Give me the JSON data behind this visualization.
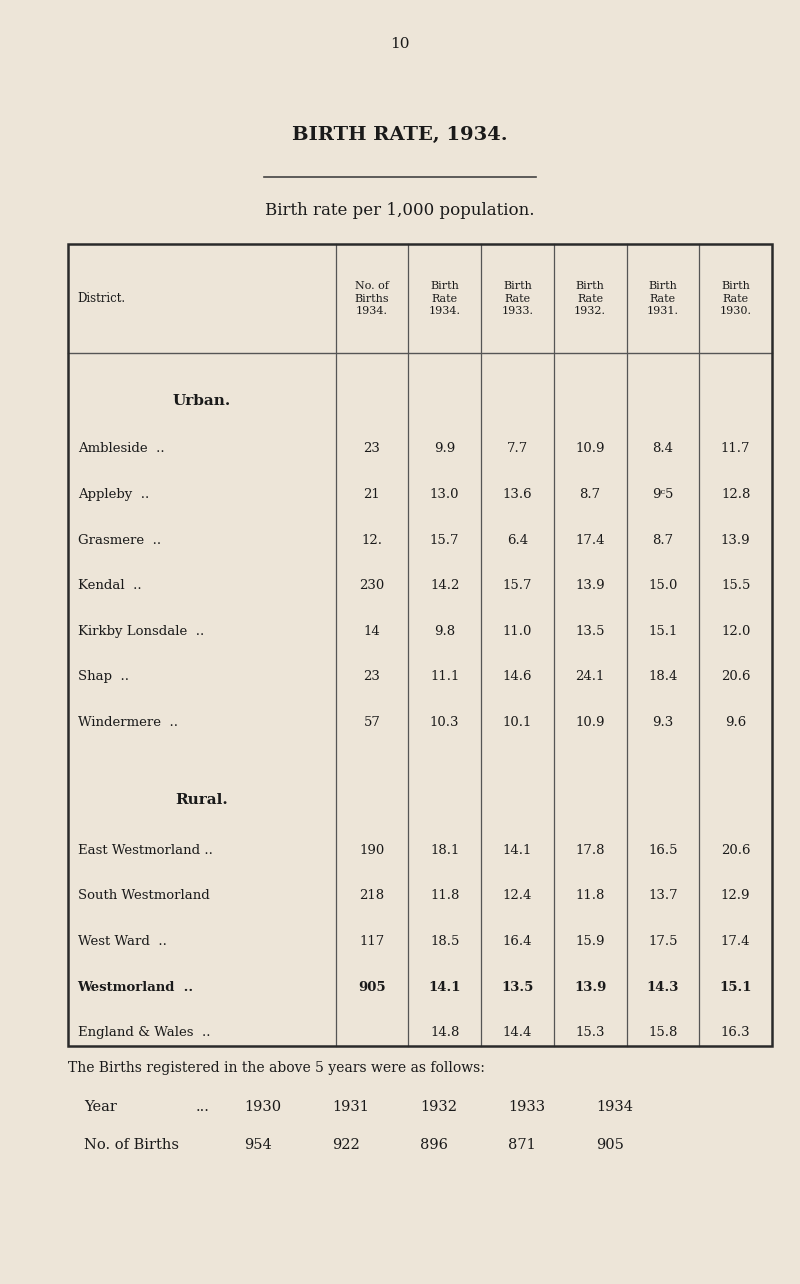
{
  "page_number": "10",
  "title": "BIRTH RATE, 1934.",
  "subtitle": "Birth rate per 1,000 population.",
  "background_color": "#ede5d8",
  "text_color": "#1a1a1a",
  "col_headers": [
    "District.",
    "No. of\nBirths\n1934.",
    "Birth\nRate\n1934.",
    "Birth\nRate\n1933.",
    "Birth\nRate\n1932.",
    "Birth\nRate\n1931.",
    "Birth\nRate\n1930."
  ],
  "urban_label": "Urban.",
  "urban_rows": [
    [
      "Ambleside  ..",
      "23",
      "9.9",
      "7.7",
      "10.9",
      "8.4",
      "11.7"
    ],
    [
      "Appleby  ..",
      "21",
      "13.0",
      "13.6",
      "8.7",
      "9ᶜ5",
      "12.8"
    ],
    [
      "Grasmere  ..",
      "12.",
      "15.7",
      "6.4",
      "17.4",
      "8.7",
      "13.9"
    ],
    [
      "Kendal  ..",
      "230",
      "14.2",
      "15.7",
      "13.9",
      "15.0",
      "15.5"
    ],
    [
      "Kirkby Lonsdale  ..",
      "14",
      "9.8",
      "11.0",
      "13.5",
      "15.1",
      "12.0"
    ],
    [
      "Shap  ..",
      "23",
      "11.1",
      "14.6",
      "24.1",
      "18.4",
      "20.6"
    ],
    [
      "Windermere  ..",
      "57",
      "10.3",
      "10.1",
      "10.9",
      "9.3",
      "9.6"
    ]
  ],
  "rural_label": "Rural.",
  "rural_rows": [
    [
      "East Westmorland ..",
      "190",
      "18.1",
      "14.1",
      "17.8",
      "16.5",
      "20.6",
      false
    ],
    [
      "South Westmorland",
      "218",
      "11.8",
      "12.4",
      "11.8",
      "13.7",
      "12.9",
      false
    ],
    [
      "West Ward  ..",
      "117",
      "18.5",
      "16.4",
      "15.9",
      "17.5",
      "17.4",
      false
    ],
    [
      "Westmorland  ..",
      "905",
      "14.1",
      "13.5",
      "13.9",
      "14.3",
      "15.1",
      true
    ],
    [
      "England & Wales  ..",
      "",
      "14.8",
      "14.4",
      "15.3",
      "15.8",
      "16.3",
      false
    ]
  ],
  "footer_text": "The Births registered in the above 5 years were as follows:",
  "years": [
    "1930",
    "1931",
    "1932",
    "1933",
    "1934"
  ],
  "births": [
    "954",
    "922",
    "896",
    "871",
    "905"
  ]
}
